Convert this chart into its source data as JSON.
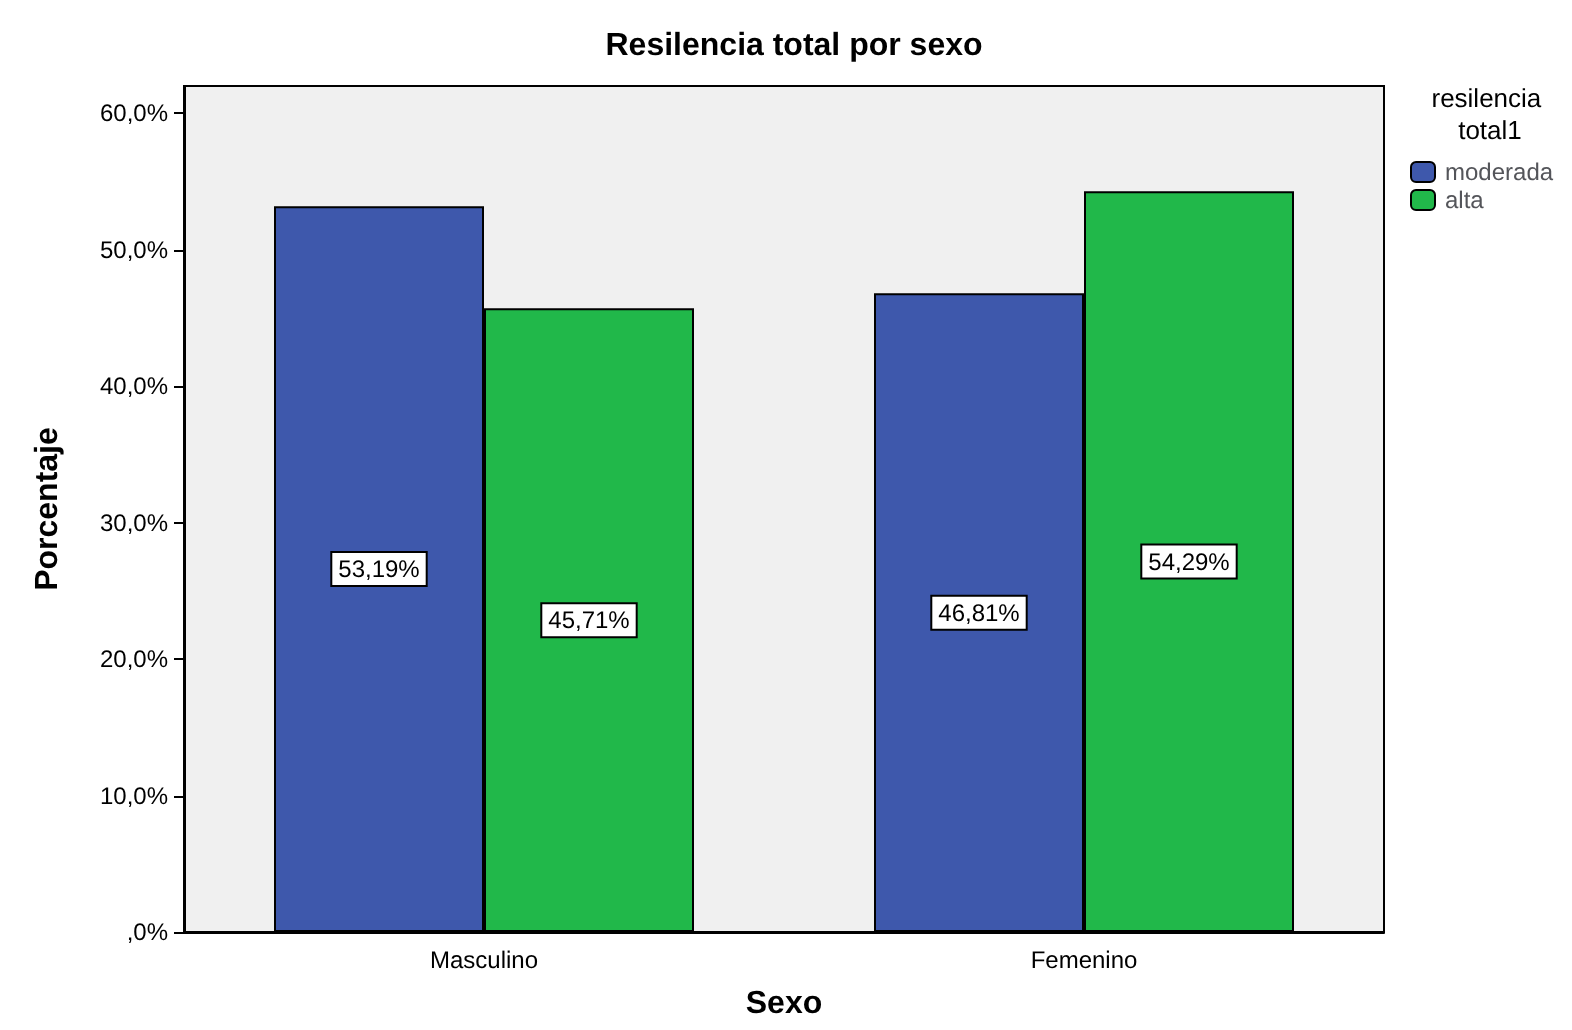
{
  "chart_data": {
    "type": "bar",
    "title": "Resilencia total por sexo",
    "xlabel": "Sexo",
    "ylabel": "Porcentaje",
    "legend_title": "resilencia total1",
    "categories": [
      "Masculino",
      "Femenino"
    ],
    "series": [
      {
        "name": "moderada",
        "color": "#3e58ac",
        "values": [
          53.19,
          46.81
        ],
        "value_labels": [
          "53,19%",
          "46,81%"
        ]
      },
      {
        "name": "alta",
        "color": "#21b84a",
        "values": [
          45.71,
          54.29
        ],
        "value_labels": [
          "45,71%",
          "54,29%"
        ]
      }
    ],
    "ylim": [
      0,
      62
    ],
    "yticks": [
      {
        "value": 0,
        "label": ",0%"
      },
      {
        "value": 10,
        "label": "10,0%"
      },
      {
        "value": 20,
        "label": "20,0%"
      },
      {
        "value": 30,
        "label": "30,0%"
      },
      {
        "value": 40,
        "label": "40,0%"
      },
      {
        "value": 50,
        "label": "50,0%"
      },
      {
        "value": 60,
        "label": "60,0%"
      }
    ],
    "grid": false,
    "legend": "right"
  }
}
